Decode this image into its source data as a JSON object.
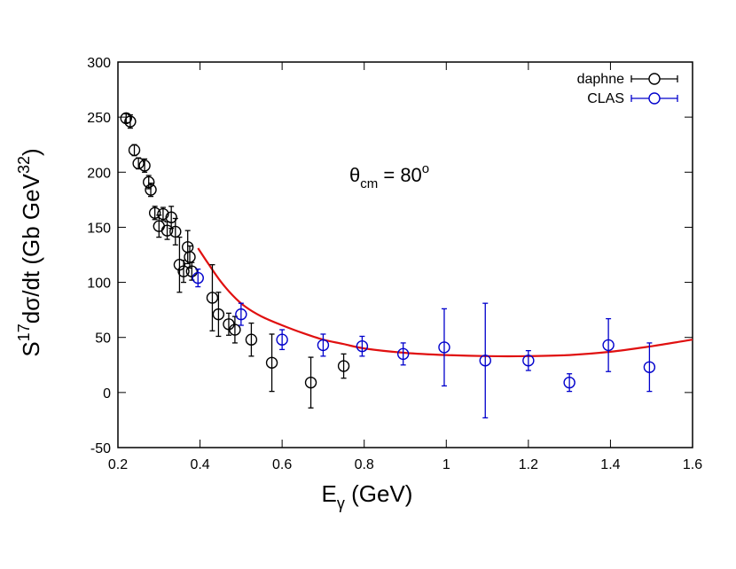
{
  "chart_data": {
    "type": "scatter",
    "title": "",
    "xlabel": {
      "main": "E",
      "sub": "γ",
      "tail": " (GeV)"
    },
    "ylabel": {
      "pre": "S",
      "sup1": "17",
      "mid": "dσ/dt (Gb GeV",
      "sup2": "32",
      "post": ")"
    },
    "annotation": {
      "main": "θ",
      "sub": "cm",
      "mid": " = 80",
      "sup": "o"
    },
    "xlim": [
      0.2,
      1.6
    ],
    "ylim": [
      -50,
      300
    ],
    "xticks": [
      0.2,
      0.4,
      0.6,
      0.8,
      1.0,
      1.2,
      1.4,
      1.6
    ],
    "xtick_labels": [
      "0.2",
      "0.4",
      "0.6",
      "0.8",
      "1",
      "1.2",
      "1.4",
      "1.6"
    ],
    "yticks": [
      -50,
      0,
      50,
      100,
      150,
      200,
      250,
      300
    ],
    "ytick_labels": [
      "-50",
      "0",
      "50",
      "100",
      "150",
      "200",
      "250",
      "300"
    ],
    "legend_position": "top-right",
    "series": [
      {
        "name": "daphne",
        "color": "#000000",
        "marker": "open-circle",
        "points": [
          {
            "x": 0.22,
            "y": 249,
            "err": 4
          },
          {
            "x": 0.23,
            "y": 246,
            "err": 6
          },
          {
            "x": 0.24,
            "y": 220,
            "err": 5
          },
          {
            "x": 0.25,
            "y": 208,
            "err": 5
          },
          {
            "x": 0.265,
            "y": 206,
            "err": 6
          },
          {
            "x": 0.275,
            "y": 191,
            "err": 6
          },
          {
            "x": 0.28,
            "y": 184,
            "err": 6
          },
          {
            "x": 0.29,
            "y": 163,
            "err": 6
          },
          {
            "x": 0.3,
            "y": 151,
            "err": 10
          },
          {
            "x": 0.31,
            "y": 162,
            "err": 6
          },
          {
            "x": 0.32,
            "y": 147,
            "err": 8
          },
          {
            "x": 0.33,
            "y": 159,
            "err": 10
          },
          {
            "x": 0.34,
            "y": 146,
            "err": 12
          },
          {
            "x": 0.35,
            "y": 116,
            "err": 25
          },
          {
            "x": 0.36,
            "y": 110,
            "err": 10
          },
          {
            "x": 0.37,
            "y": 132,
            "err": 15
          },
          {
            "x": 0.375,
            "y": 123,
            "err": 10
          },
          {
            "x": 0.38,
            "y": 110,
            "err": 8
          },
          {
            "x": 0.43,
            "y": 86,
            "err": 30
          },
          {
            "x": 0.445,
            "y": 71,
            "err": 20
          },
          {
            "x": 0.47,
            "y": 62,
            "err": 10
          },
          {
            "x": 0.485,
            "y": 57,
            "err": 12
          },
          {
            "x": 0.525,
            "y": 48,
            "err": 15
          },
          {
            "x": 0.575,
            "y": 27,
            "err": 26
          },
          {
            "x": 0.67,
            "y": 9,
            "err": 23
          },
          {
            "x": 0.75,
            "y": 24,
            "err": 11
          }
        ]
      },
      {
        "name": "CLAS",
        "color": "#0000cc",
        "marker": "open-circle",
        "points": [
          {
            "x": 0.395,
            "y": 104,
            "err": 8
          },
          {
            "x": 0.5,
            "y": 71,
            "err": 10
          },
          {
            "x": 0.6,
            "y": 48,
            "err": 9
          },
          {
            "x": 0.7,
            "y": 43,
            "err": 10
          },
          {
            "x": 0.795,
            "y": 42,
            "err": 9
          },
          {
            "x": 0.895,
            "y": 35,
            "err": 10
          },
          {
            "x": 0.995,
            "y": 41,
            "err": 35
          },
          {
            "x": 1.095,
            "y": 29,
            "err": 52
          },
          {
            "x": 1.2,
            "y": 29,
            "err": 9
          },
          {
            "x": 1.3,
            "y": 9,
            "err": 8
          },
          {
            "x": 1.395,
            "y": 43,
            "err": 24
          },
          {
            "x": 1.495,
            "y": 23,
            "err": 22
          }
        ]
      }
    ],
    "curve": {
      "color": "#e01010",
      "x": [
        0.395,
        0.42,
        0.45,
        0.48,
        0.51,
        0.55,
        0.6,
        0.65,
        0.7,
        0.75,
        0.8,
        0.9,
        1.0,
        1.1,
        1.2,
        1.3,
        1.4,
        1.5,
        1.6
      ],
      "y": [
        131,
        117,
        101,
        88,
        78,
        69,
        61,
        54,
        48,
        44,
        40,
        36,
        34,
        33,
        33,
        34,
        37,
        42,
        48
      ]
    }
  }
}
